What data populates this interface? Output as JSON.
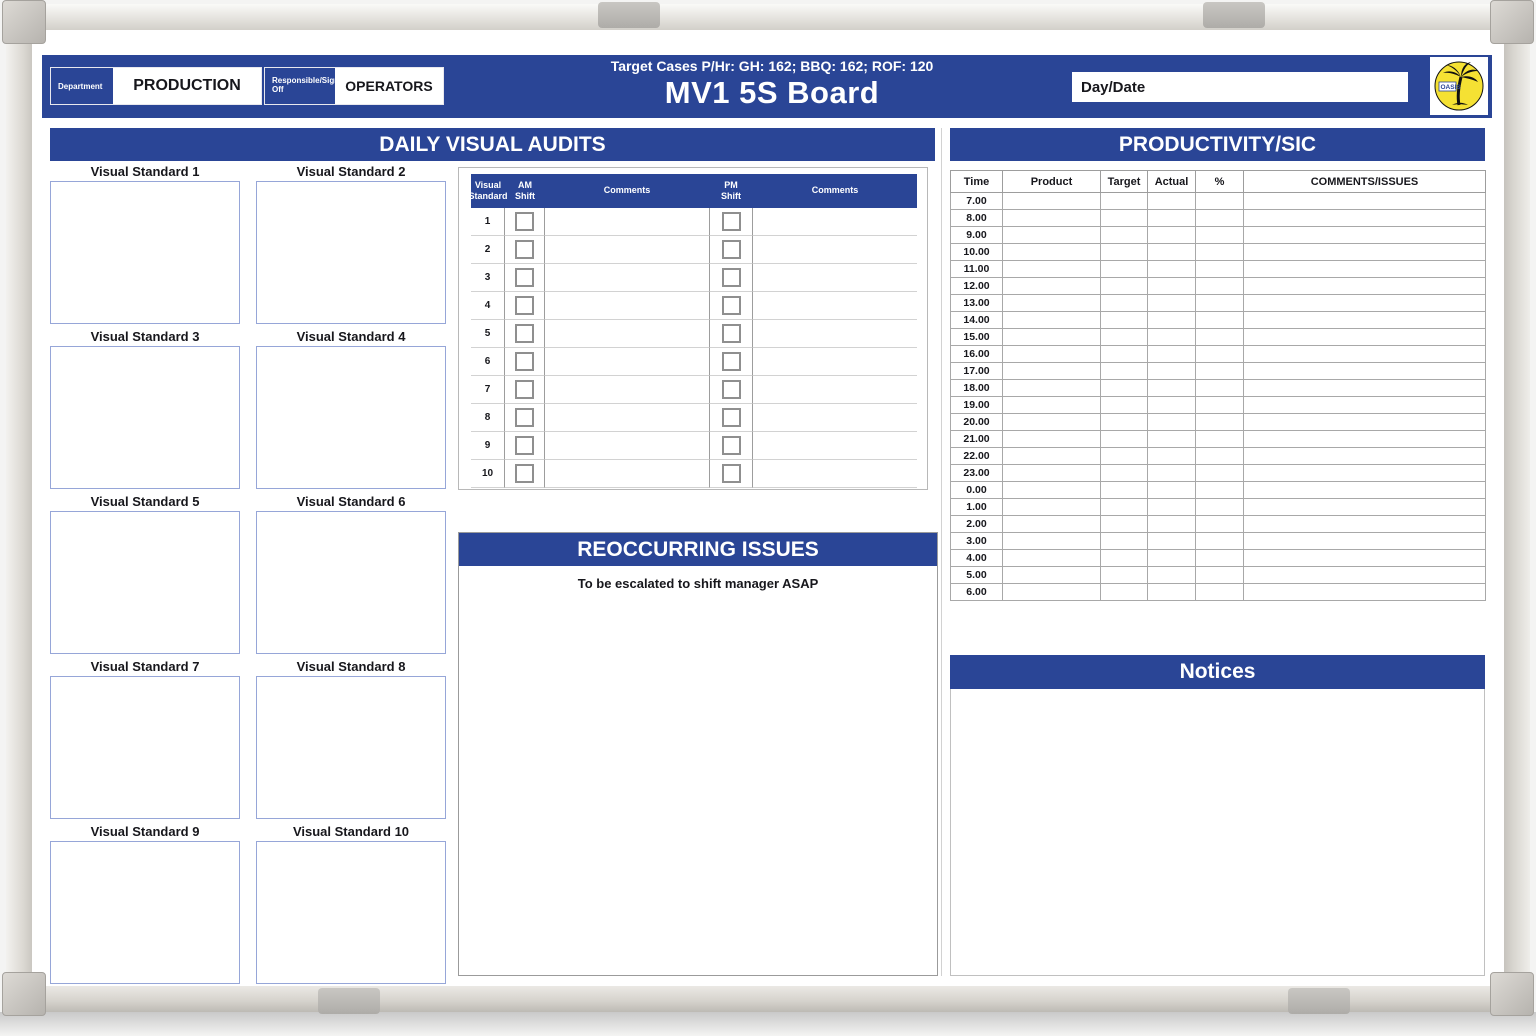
{
  "board": {
    "title": "MV1 5S Board",
    "target_line": "Target Cases P/Hr: GH: 162; BBQ: 162; ROF: 120",
    "department_label": "Department",
    "department_value": "PRODUCTION",
    "responsible_label": "Responsible/Sign Off",
    "responsible_value": "OPERATORS",
    "day_date_label": "Day/Date",
    "logo_text": "OASIS"
  },
  "daily_visual_audits": {
    "title": "DAILY VISUAL AUDITS",
    "standards": [
      "Visual Standard 1",
      "Visual Standard 2",
      "Visual Standard 3",
      "Visual Standard 4",
      "Visual Standard 5",
      "Visual Standard 6",
      "Visual Standard 7",
      "Visual Standard 8",
      "Visual Standard 9",
      "Visual Standard 10"
    ]
  },
  "audit_table": {
    "headers": [
      "Visual\nStandard",
      "AM\nShift",
      "Comments",
      "PM\nShift",
      "Comments"
    ],
    "rows": [
      "1",
      "2",
      "3",
      "4",
      "5",
      "6",
      "7",
      "8",
      "9",
      "10"
    ]
  },
  "reoccurring_issues": {
    "title": "REOCCURRING ISSUES",
    "subtitle": "To be escalated to shift manager ASAP"
  },
  "productivity": {
    "title": "PRODUCTIVITY/SIC",
    "headers": [
      "Time",
      "Product",
      "Target",
      "Actual",
      "%",
      "COMMENTS/ISSUES"
    ],
    "times": [
      "7.00",
      "8.00",
      "9.00",
      "10.00",
      "11.00",
      "12.00",
      "13.00",
      "14.00",
      "15.00",
      "16.00",
      "17.00",
      "18.00",
      "19.00",
      "20.00",
      "21.00",
      "22.00",
      "23.00",
      "0.00",
      "1.00",
      "2.00",
      "3.00",
      "4.00",
      "5.00",
      "6.00"
    ]
  },
  "notices": {
    "title": "Notices"
  },
  "colors": {
    "primary_blue": "#2a4596",
    "standard_box_border": "#96a6d8",
    "grid_line": "#a8a8a8"
  }
}
